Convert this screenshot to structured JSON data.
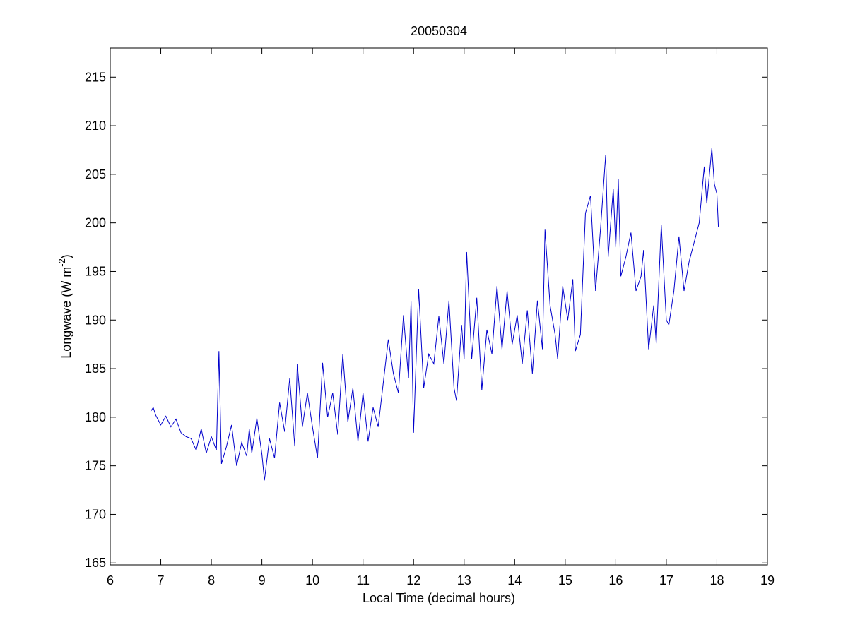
{
  "chart_data": {
    "type": "line",
    "title": "20050304",
    "x_label": "Local Time (decimal hours)",
    "y_label": [
      "Longwave (W m",
      "-2",
      ")"
    ],
    "xlim": [
      6,
      19
    ],
    "xticks": [
      6,
      7,
      8,
      9,
      10,
      11,
      12,
      13,
      14,
      15,
      16,
      17,
      18,
      19
    ],
    "ylim": [
      164.8,
      218
    ],
    "yticks": [
      165,
      170,
      175,
      180,
      185,
      190,
      195,
      200,
      205,
      210,
      215
    ],
    "series": [
      {
        "color": "#0000cc",
        "x": [
          6.8,
          6.85,
          6.9,
          7.0,
          7.1,
          7.2,
          7.3,
          7.4,
          7.5,
          7.6,
          7.7,
          7.8,
          7.9,
          8.0,
          8.1,
          8.15,
          8.2,
          8.3,
          8.4,
          8.5,
          8.6,
          8.7,
          8.75,
          8.8,
          8.9,
          9.0,
          9.05,
          9.15,
          9.25,
          9.35,
          9.45,
          9.55,
          9.65,
          9.7,
          9.8,
          9.9,
          10.0,
          10.1,
          10.2,
          10.3,
          10.4,
          10.5,
          10.6,
          10.7,
          10.8,
          10.9,
          11.0,
          11.1,
          11.2,
          11.3,
          11.4,
          11.5,
          11.6,
          11.7,
          11.8,
          11.9,
          11.95,
          12.0,
          12.1,
          12.2,
          12.3,
          12.4,
          12.5,
          12.6,
          12.7,
          12.8,
          12.85,
          12.95,
          13.0,
          13.05,
          13.15,
          13.25,
          13.35,
          13.45,
          13.55,
          13.65,
          13.75,
          13.85,
          13.95,
          14.05,
          14.15,
          14.25,
          14.35,
          14.45,
          14.55,
          14.6,
          14.7,
          14.8,
          14.85,
          14.95,
          15.05,
          15.15,
          15.2,
          15.3,
          15.4,
          15.5,
          15.6,
          15.7,
          15.8,
          15.85,
          15.95,
          16.0,
          16.05,
          16.1,
          16.2,
          16.3,
          16.4,
          16.5,
          16.55,
          16.65,
          16.75,
          16.8,
          16.9,
          17.0,
          17.05,
          17.15,
          17.25,
          17.35,
          17.45,
          17.55,
          17.65,
          17.75,
          17.8,
          17.9,
          17.95,
          18.0,
          18.03
        ],
        "values": [
          180.6,
          181.0,
          180.2,
          179.2,
          180.1,
          179.0,
          179.8,
          178.4,
          178.0,
          177.8,
          176.6,
          178.8,
          176.3,
          178.0,
          176.6,
          186.8,
          175.2,
          177.0,
          179.2,
          175.0,
          177.4,
          176.0,
          178.8,
          176.3,
          179.9,
          176.2,
          173.5,
          177.8,
          175.8,
          181.5,
          178.5,
          184.0,
          177.0,
          185.5,
          179.0,
          182.5,
          179.0,
          175.8,
          185.6,
          180.0,
          182.5,
          178.2,
          186.5,
          179.5,
          183.0,
          177.5,
          182.5,
          177.5,
          181.0,
          179.0,
          183.5,
          188.0,
          184.5,
          182.5,
          190.5,
          184.0,
          191.9,
          178.4,
          193.2,
          183.0,
          186.5,
          185.5,
          190.4,
          185.5,
          192.0,
          183.0,
          181.7,
          189.5,
          186.0,
          197.0,
          186.0,
          192.3,
          182.8,
          189.0,
          186.5,
          193.5,
          187.0,
          193.0,
          187.5,
          190.5,
          185.5,
          191.0,
          184.5,
          192.0,
          187.0,
          199.3,
          191.5,
          188.5,
          186.0,
          193.5,
          190.0,
          194.2,
          186.8,
          188.5,
          201.0,
          202.8,
          193.0,
          199.5,
          207.0,
          196.5,
          203.5,
          197.5,
          204.5,
          194.5,
          196.5,
          199.0,
          193.0,
          194.5,
          197.2,
          187.0,
          191.5,
          187.6,
          199.8,
          190.0,
          189.5,
          193.0,
          198.6,
          193.0,
          196.0,
          198.0,
          200.0,
          205.8,
          202.0,
          207.7,
          204.0,
          203.0,
          199.6
        ]
      }
    ]
  }
}
